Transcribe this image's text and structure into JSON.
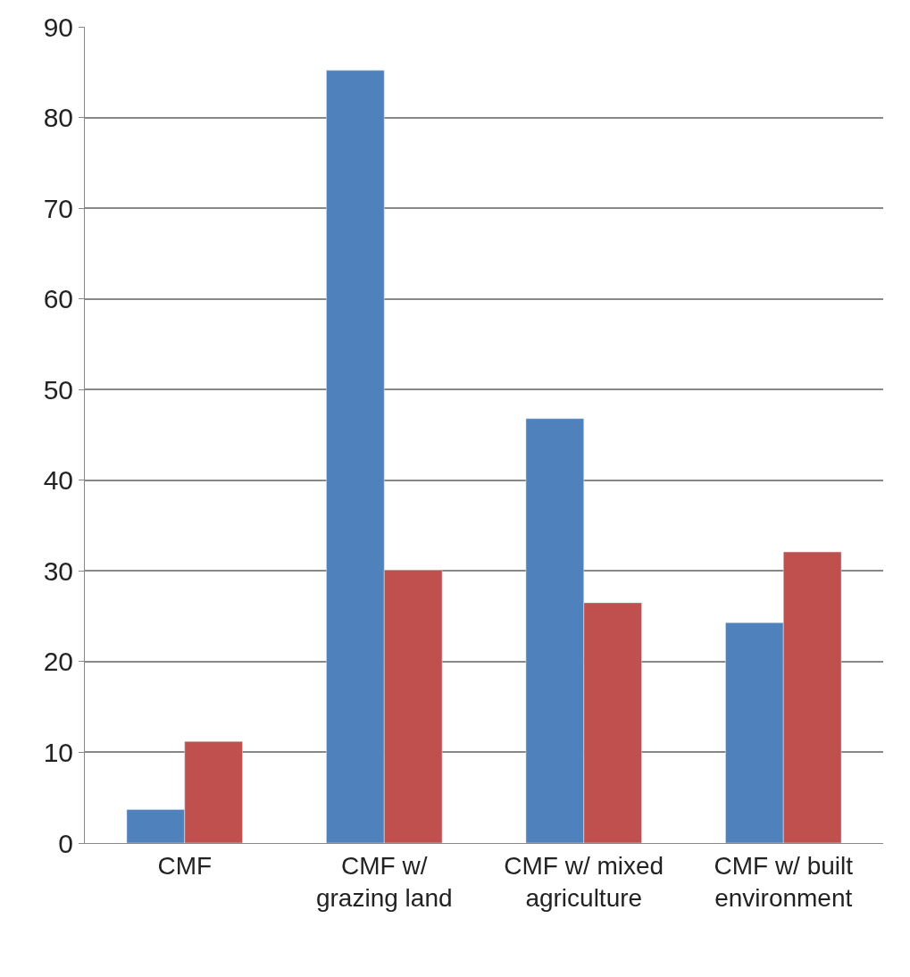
{
  "chart_data": {
    "type": "bar",
    "categories": [
      "CMF",
      "CMF w/ grazing land",
      "CMF w/ mixed agriculture",
      "CMF w/ built environment"
    ],
    "series": [
      {
        "color": "#4f81bd",
        "values": [
          3.7,
          85.2,
          46.8,
          24.3
        ]
      },
      {
        "color": "#c0504d",
        "values": [
          11.2,
          30.1,
          26.5,
          32.1
        ]
      }
    ],
    "ylim": [
      0,
      90
    ],
    "yticks": [
      0,
      10,
      20,
      30,
      40,
      50,
      60,
      70,
      80,
      90
    ],
    "grid": "y"
  }
}
